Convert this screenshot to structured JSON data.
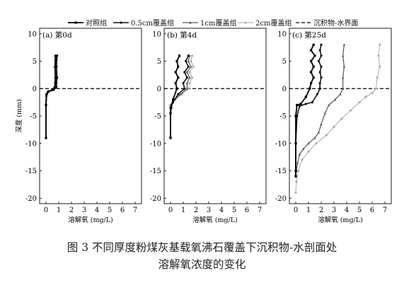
{
  "legend": {
    "entries": [
      {
        "label": "对照组",
        "color": "#000000",
        "dash": "",
        "marker": "square"
      },
      {
        "label": "0.5cm覆盖组",
        "color": "#111111",
        "dash": "",
        "marker": "circle"
      },
      {
        "label": "1cm覆盖组",
        "color": "#555555",
        "dash": "",
        "marker": "triangle"
      },
      {
        "label": "2cm覆盖组",
        "color": "#aaaaaa",
        "dash": "",
        "marker": "diamond"
      },
      {
        "label": "沉积物-水界面",
        "color": "#000000",
        "dash": "5,3",
        "marker": "none"
      }
    ]
  },
  "caption": {
    "line1": "图 3   不同厚度粉煤灰基载氧沸石覆盖下沉积物-水剖面处",
    "line2": "溶解氧浓度的变化"
  },
  "chart_data": [
    {
      "type": "line",
      "panel_label": "(a) 第0d",
      "xlabel": "溶解氧 (mg/L)",
      "ylabel": "深度 (mm)",
      "xlim": [
        -0.5,
        7.5
      ],
      "ylim": [
        -21,
        11
      ],
      "xticks": [
        0,
        1,
        2,
        3,
        4,
        5,
        6,
        7
      ],
      "yticks": [
        10,
        5,
        0,
        -5,
        -10,
        -15,
        -20
      ],
      "grid": false,
      "interface_depth": 0,
      "series": [
        {
          "name": "对照组",
          "points": [
            [
              0.85,
              6
            ],
            [
              0.8,
              4
            ],
            [
              0.85,
              2
            ],
            [
              0.8,
              1
            ],
            [
              0.8,
              0.2
            ],
            [
              0.6,
              -0.2
            ],
            [
              0.2,
              -0.5
            ],
            [
              0.05,
              -1.0
            ],
            [
              0.0,
              -3
            ],
            [
              0.0,
              -9
            ]
          ]
        },
        {
          "name": "0.5cm覆盖组",
          "points": [
            [
              0.75,
              6
            ],
            [
              0.72,
              4
            ],
            [
              0.75,
              2
            ],
            [
              0.72,
              1
            ],
            [
              0.7,
              0.2
            ],
            [
              0.5,
              -0.2
            ],
            [
              0.15,
              -0.6
            ],
            [
              0.03,
              -1.2
            ],
            [
              0.0,
              -3
            ],
            [
              0.0,
              -9
            ]
          ]
        },
        {
          "name": "1cm覆盖组",
          "points": [
            [
              0.7,
              6
            ],
            [
              0.68,
              4
            ],
            [
              0.7,
              2
            ],
            [
              0.68,
              0.5
            ],
            [
              0.45,
              -0.3
            ],
            [
              0.1,
              -0.8
            ],
            [
              0.0,
              -2
            ],
            [
              0.0,
              -9
            ]
          ]
        },
        {
          "name": "2cm覆盖组",
          "points": [
            [
              0.9,
              6
            ],
            [
              0.88,
              4
            ],
            [
              0.9,
              2
            ],
            [
              0.85,
              0.5
            ],
            [
              0.6,
              -0.2
            ],
            [
              0.2,
              -0.6
            ],
            [
              0.0,
              -1.5
            ],
            [
              0.0,
              -9
            ]
          ]
        }
      ]
    },
    {
      "type": "line",
      "panel_label": "(b) 第4d",
      "xlabel": "溶解氧 (mg/L)",
      "ylabel": "",
      "xlim": [
        -0.5,
        7.5
      ],
      "ylim": [
        -21,
        11
      ],
      "xticks": [
        0,
        1,
        2,
        3,
        4,
        5,
        6,
        7
      ],
      "yticks": [
        10,
        5,
        0,
        -5,
        -10,
        -15,
        -20
      ],
      "grid": false,
      "interface_depth": 0,
      "series": [
        {
          "name": "对照组",
          "points": [
            [
              0.7,
              6
            ],
            [
              0.5,
              5
            ],
            [
              0.6,
              4
            ],
            [
              0.4,
              3
            ],
            [
              0.6,
              2
            ],
            [
              0.4,
              1
            ],
            [
              0.5,
              0
            ],
            [
              0.2,
              -2
            ],
            [
              0.05,
              -3.5
            ],
            [
              0.0,
              -4.5
            ],
            [
              0.0,
              -9
            ]
          ]
        },
        {
          "name": "0.5cm覆盖组",
          "points": [
            [
              1.4,
              6
            ],
            [
              1.2,
              5
            ],
            [
              1.4,
              4
            ],
            [
              1.1,
              3
            ],
            [
              1.3,
              2
            ],
            [
              1.0,
              1
            ],
            [
              1.1,
              0
            ],
            [
              0.6,
              -1
            ],
            [
              0.2,
              -2.5
            ],
            [
              0.0,
              -3.5
            ],
            [
              0.0,
              -9
            ]
          ]
        },
        {
          "name": "1cm覆盖组",
          "points": [
            [
              1.5,
              6
            ],
            [
              1.4,
              5
            ],
            [
              1.6,
              4
            ],
            [
              1.3,
              3
            ],
            [
              1.5,
              2
            ],
            [
              1.3,
              1
            ],
            [
              1.3,
              0
            ],
            [
              0.8,
              -1
            ],
            [
              0.3,
              -2
            ],
            [
              0.0,
              -3
            ],
            [
              0.0,
              -9
            ]
          ]
        },
        {
          "name": "2cm覆盖组",
          "points": [
            [
              1.7,
              6
            ],
            [
              1.6,
              5
            ],
            [
              1.8,
              4
            ],
            [
              1.5,
              3
            ],
            [
              1.7,
              2
            ],
            [
              1.5,
              1
            ],
            [
              1.4,
              0
            ],
            [
              0.9,
              -1
            ],
            [
              0.4,
              -2
            ],
            [
              0.0,
              -3
            ],
            [
              0.0,
              -9
            ]
          ]
        }
      ]
    },
    {
      "type": "line",
      "panel_label": "(c) 第25d",
      "xlabel": "溶解氧 (mg/L)",
      "ylabel": "",
      "xlim": [
        -0.5,
        7.5
      ],
      "ylim": [
        -21,
        11
      ],
      "xticks": [
        0,
        1,
        2,
        3,
        4,
        5,
        6,
        7
      ],
      "yticks": [
        10,
        5,
        0,
        -5,
        -10,
        -15,
        -20
      ],
      "grid": false,
      "interface_depth": 0,
      "series": [
        {
          "name": "对照组",
          "points": [
            [
              1.4,
              8
            ],
            [
              1.2,
              7
            ],
            [
              1.5,
              6
            ],
            [
              1.2,
              5
            ],
            [
              1.4,
              4
            ],
            [
              1.2,
              3
            ],
            [
              1.4,
              2
            ],
            [
              1.2,
              1
            ],
            [
              1.1,
              0
            ],
            [
              0.8,
              -1.5
            ],
            [
              0.4,
              -2.8
            ],
            [
              0.1,
              -3.0
            ],
            [
              0.0,
              -5
            ],
            [
              0.0,
              -10
            ],
            [
              0.0,
              -15
            ],
            [
              0.0,
              -16
            ]
          ]
        },
        {
          "name": "0.5cm覆盖组",
          "points": [
            [
              2.0,
              8
            ],
            [
              1.9,
              7
            ],
            [
              2.0,
              6
            ],
            [
              1.8,
              5
            ],
            [
              2.0,
              4
            ],
            [
              1.9,
              3
            ],
            [
              2.0,
              2
            ],
            [
              1.9,
              1
            ],
            [
              1.9,
              0
            ],
            [
              1.7,
              -1
            ],
            [
              1.3,
              -2.5
            ],
            [
              0.8,
              -2.8
            ],
            [
              0.3,
              -3.2
            ],
            [
              0.1,
              -5
            ],
            [
              0.0,
              -10
            ],
            [
              0.0,
              -15
            ],
            [
              0.0,
              -16
            ]
          ]
        },
        {
          "name": "1cm覆盖组",
          "points": [
            [
              3.8,
              8
            ],
            [
              3.7,
              6
            ],
            [
              3.8,
              4
            ],
            [
              3.7,
              2
            ],
            [
              3.7,
              0
            ],
            [
              3.5,
              -1
            ],
            [
              3.1,
              -2
            ],
            [
              2.6,
              -3
            ],
            [
              2.3,
              -4.5
            ],
            [
              2.0,
              -6.5
            ],
            [
              1.8,
              -8
            ],
            [
              1.5,
              -9
            ],
            [
              1.0,
              -10
            ],
            [
              0.6,
              -11
            ],
            [
              0.3,
              -12
            ],
            [
              0.15,
              -13.5
            ],
            [
              0.05,
              -15
            ],
            [
              0.0,
              -16
            ]
          ]
        },
        {
          "name": "2cm覆盖组",
          "points": [
            [
              6.6,
              8
            ],
            [
              6.5,
              6
            ],
            [
              6.6,
              4
            ],
            [
              6.4,
              2
            ],
            [
              6.3,
              0
            ],
            [
              6.0,
              -0.8
            ],
            [
              5.5,
              -1.5
            ],
            [
              5.0,
              -2.5
            ],
            [
              4.3,
              -4
            ],
            [
              3.6,
              -5.5
            ],
            [
              3.0,
              -7
            ],
            [
              2.4,
              -8.5
            ],
            [
              1.6,
              -10
            ],
            [
              1.0,
              -11.5
            ],
            [
              0.5,
              -13
            ],
            [
              0.2,
              -15
            ],
            [
              0.05,
              -17
            ],
            [
              0.0,
              -19
            ]
          ]
        }
      ]
    }
  ]
}
